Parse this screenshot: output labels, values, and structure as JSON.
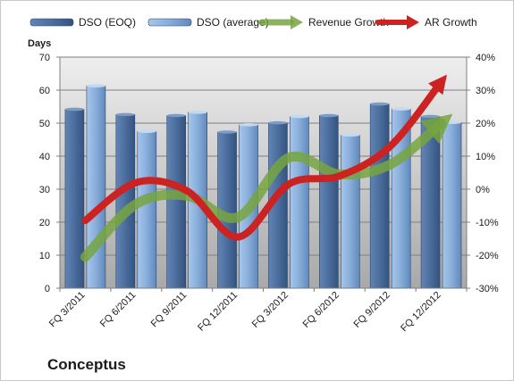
{
  "chart_data": {
    "type": "bar",
    "company": "Conceptus",
    "categories": [
      "FQ 3/2011",
      "FQ 6/2011",
      "FQ 9/2011",
      "FQ 12/2011",
      "FQ 3/2012",
      "FQ 6/2012",
      "FQ 9/2012",
      "FQ 12/2012"
    ],
    "left_axis": {
      "label": "Days",
      "min": 0,
      "max": 70,
      "step": 10,
      "ticks": [
        "0",
        "10",
        "20",
        "30",
        "40",
        "50",
        "60",
        "70"
      ]
    },
    "right_axis": {
      "label": "",
      "min": -30,
      "max": 40,
      "step": 10,
      "ticks": [
        "-30%",
        "-20%",
        "-10%",
        "0%",
        "10%",
        "20%",
        "30%",
        "40%"
      ]
    },
    "series": [
      {
        "name": "DSO (EOQ)",
        "kind": "bar",
        "axis": "left",
        "color": "#4a6fa0",
        "values": [
          54.2,
          52.6,
          52.3,
          47.3,
          50.1,
          52.3,
          55.8,
          52.0
        ]
      },
      {
        "name": "DSO (average)",
        "kind": "bar",
        "axis": "left",
        "color": "#8ab0dd",
        "values": [
          61.3,
          47.5,
          53.3,
          49.5,
          52.0,
          46.4,
          54.3,
          50.2
        ]
      },
      {
        "name": "Revenue Growth",
        "kind": "line",
        "axis": "right",
        "color": "#77a540",
        "values": [
          -20.5,
          -4.5,
          -2.0,
          -8.5,
          9.5,
          4.5,
          7.5,
          20.0
        ]
      },
      {
        "name": "AR Growth",
        "kind": "line",
        "axis": "right",
        "color": "#cc2222",
        "values": [
          -9.5,
          2.0,
          -0.5,
          -14.5,
          1.5,
          4.0,
          13.0,
          32.5
        ]
      }
    ],
    "grid": true,
    "legend_position": "top"
  }
}
